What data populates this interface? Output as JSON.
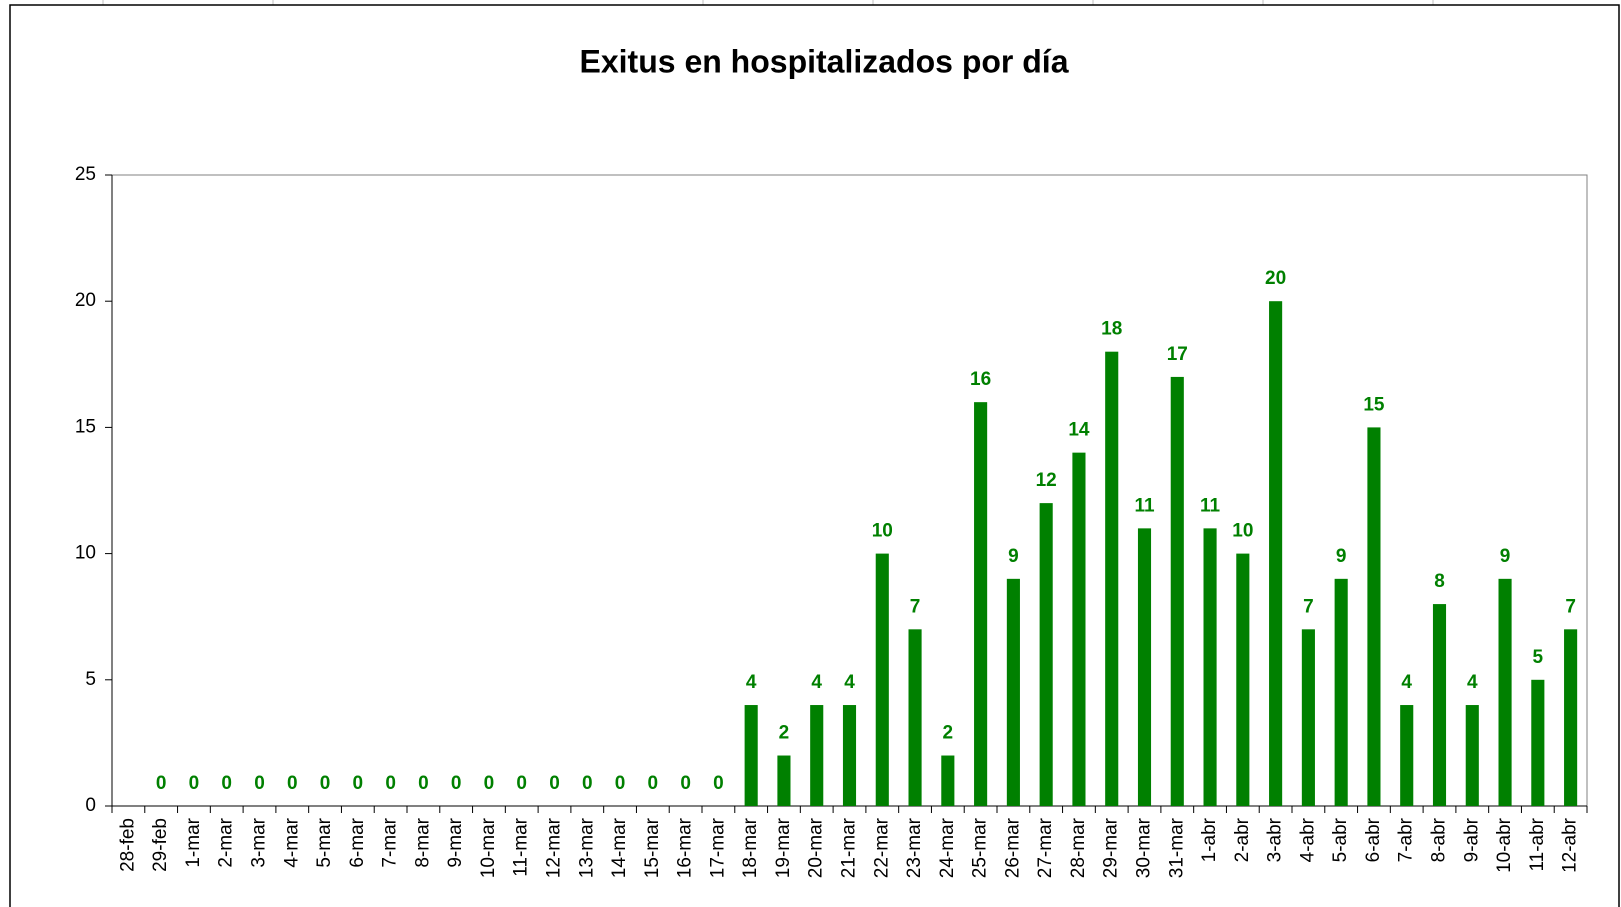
{
  "chart_data": {
    "type": "bar",
    "title": "Exitus en hospitalizados por día",
    "categories": [
      "28-feb",
      "29-feb",
      "1-mar",
      "2-mar",
      "3-mar",
      "4-mar",
      "5-mar",
      "6-mar",
      "7-mar",
      "8-mar",
      "9-mar",
      "10-mar",
      "11-mar",
      "12-mar",
      "13-mar",
      "14-mar",
      "15-mar",
      "16-mar",
      "17-mar",
      "18-mar",
      "19-mar",
      "20-mar",
      "21-mar",
      "22-mar",
      "23-mar",
      "24-mar",
      "25-mar",
      "26-mar",
      "27-mar",
      "28-mar",
      "29-mar",
      "30-mar",
      "31-mar",
      "1-abr",
      "2-abr",
      "3-abr",
      "4-abr",
      "5-abr",
      "6-abr",
      "7-abr",
      "8-abr",
      "9-abr",
      "10-abr",
      "11-abr",
      "12-abr"
    ],
    "values": [
      null,
      0,
      0,
      0,
      0,
      0,
      0,
      0,
      0,
      0,
      0,
      0,
      0,
      0,
      0,
      0,
      0,
      0,
      0,
      4,
      2,
      4,
      4,
      10,
      7,
      2,
      16,
      9,
      12,
      14,
      18,
      11,
      17,
      11,
      10,
      20,
      7,
      9,
      15,
      4,
      8,
      4,
      9,
      5,
      7
    ],
    "color": "#008000",
    "ylim": [
      0,
      25
    ],
    "yticks": [
      0,
      5,
      10,
      15,
      20,
      25
    ],
    "grid": false
  }
}
